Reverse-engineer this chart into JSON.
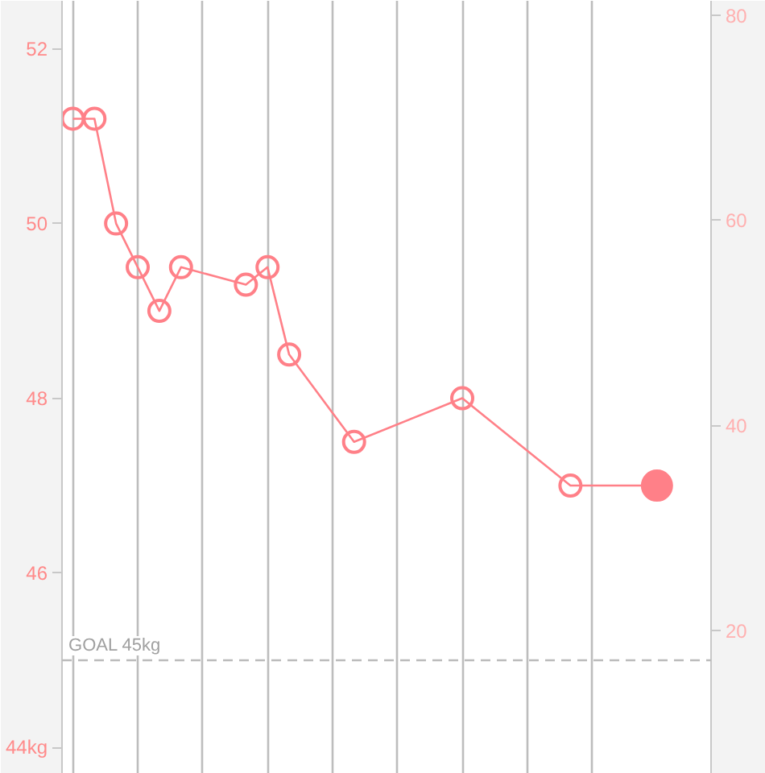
{
  "chart_data": {
    "type": "line",
    "categories": [
      null,
      null,
      null,
      null,
      null,
      null,
      null,
      null,
      null,
      null,
      null,
      null,
      null,
      null,
      null,
      null,
      null,
      null,
      null,
      null,
      null,
      null,
      null,
      null,
      null,
      null,
      null,
      null,
      null,
      null
    ],
    "ylim": [
      43.7,
      52.55
    ],
    "yticks": [
      {
        "value": 44,
        "label": "44kg"
      },
      46,
      48,
      50,
      52
    ],
    "y2lim": [
      6,
      81.4
    ],
    "y2ticks": [
      20,
      40,
      60,
      80
    ],
    "grid": "x",
    "marker": "circle",
    "line_style": "solid",
    "ref_lines": [
      {
        "axis": "y",
        "value": 45,
        "label": "GOAL 45kg",
        "color": "#bbbbbb",
        "line_style": "dashed"
      }
    ],
    "series": [
      {
        "color": "#ff8088",
        "values": [
          51.2,
          51.2,
          50.0,
          49.5,
          49.0,
          49.5,
          null,
          null,
          49.3,
          49.5,
          48.5,
          null,
          null,
          47.5,
          null,
          null,
          null,
          null,
          48.0,
          null,
          null,
          null,
          null,
          47.0,
          null,
          null,
          null,
          47.0,
          null,
          null
        ]
      },
      {
        "type": "scatter",
        "color": "#ff8088",
        "values": [
          null,
          null,
          null,
          null,
          null,
          null,
          null,
          null,
          null,
          null,
          null,
          null,
          null,
          null,
          null,
          null,
          null,
          null,
          null,
          null,
          null,
          null,
          null,
          null,
          null,
          null,
          null,
          47.0,
          null,
          null
        ]
      }
    ]
  }
}
